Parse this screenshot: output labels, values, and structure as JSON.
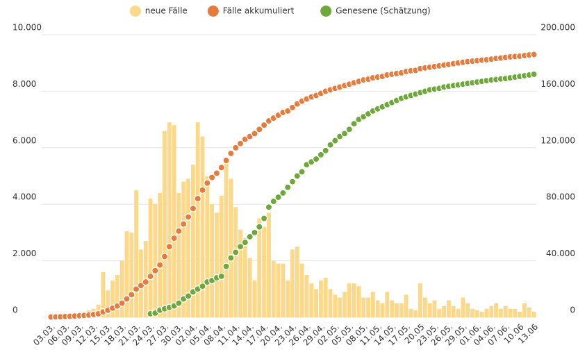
{
  "chart_data": {
    "type": "bar",
    "categories": [
      "03.03.",
      null,
      null,
      "06.03.",
      null,
      null,
      "09.03.",
      null,
      null,
      "12.03.",
      null,
      null,
      "15.03.",
      null,
      null,
      "18.03.",
      null,
      null,
      "21.03.",
      null,
      null,
      "24.03.",
      null,
      null,
      "27.03.",
      null,
      null,
      "30.03.",
      null,
      null,
      "02.04.",
      null,
      null,
      "05.04.",
      null,
      null,
      "08.04.",
      null,
      null,
      "11.04.",
      null,
      null,
      "14.04.",
      null,
      null,
      "17.04.",
      null,
      null,
      "20.04.",
      null,
      null,
      "23.04.",
      null,
      null,
      "26.04.",
      null,
      null,
      "29.04.",
      null,
      null,
      "02.05.",
      null,
      null,
      "05.05.",
      null,
      null,
      "08.05.",
      null,
      null,
      "11.05.",
      null,
      null,
      "14.05.",
      null,
      null,
      "17.05.",
      null,
      null,
      "20.05",
      null,
      null,
      "23.05.",
      null,
      null,
      "26.05.",
      null,
      null,
      "29.05.",
      null,
      null,
      "01.06.",
      null,
      null,
      "04.06.",
      null,
      null,
      "07.06.",
      null,
      null,
      "10.06",
      null,
      null,
      "13.06"
    ],
    "series": [
      {
        "name": "neue Fälle",
        "type": "bar",
        "color": "#fcd98a",
        "values": [
          20,
          30,
          50,
          100,
          120,
          150,
          150,
          200,
          250,
          300,
          450,
          1600,
          950,
          1300,
          1500,
          2000,
          3050,
          3000,
          4500,
          2400,
          2700,
          4200,
          4000,
          4400,
          6600,
          6900,
          6800,
          4400,
          4800,
          4900,
          5400,
          6900,
          6400,
          5000,
          4000,
          3700,
          4300,
          5600,
          4900,
          3900,
          3100,
          2800,
          2100,
          1300,
          3500,
          3200,
          3700,
          2000,
          1900,
          1900,
          1300,
          2400,
          2500,
          1900,
          1500,
          1200,
          1000,
          1300,
          1400,
          1000,
          800,
          700,
          900,
          1200,
          1200,
          1100,
          700,
          700,
          900,
          600,
          500,
          900,
          600,
          500,
          500,
          800,
          300,
          250,
          1200,
          700,
          500,
          600,
          300,
          400,
          600,
          400,
          300,
          700,
          500,
          300,
          250,
          200,
          300,
          400,
          500,
          300,
          400,
          300,
          300,
          200,
          500,
          350,
          200
        ]
      },
      {
        "name": "Fälle akkumuliert",
        "type": "dot",
        "axis": "y2",
        "color": "#e57b3c",
        "values": [
          200,
          300,
          400,
          500,
          700,
          900,
          1100,
          1300,
          1600,
          2000,
          2500,
          3800,
          5000,
          6500,
          8000,
          10000,
          13000,
          16000,
          20000,
          22500,
          25000,
          29000,
          33000,
          37000,
          43000,
          50000,
          56000,
          61000,
          66000,
          71000,
          77000,
          84000,
          90000,
          95000,
          99000,
          102000,
          106000,
          111000,
          116000,
          120000,
          123000,
          126000,
          128000,
          130000,
          133000,
          136000,
          139000,
          141000,
          143000,
          145000,
          146000,
          148500,
          151000,
          153000,
          154500,
          156000,
          157000,
          158500,
          160000,
          161000,
          162000,
          163000,
          164000,
          165000,
          166000,
          167000,
          168000,
          168500,
          169500,
          170000,
          170500,
          171500,
          172000,
          172500,
          173000,
          174000,
          174500,
          174800,
          176000,
          176500,
          177000,
          177500,
          178000,
          178500,
          179000,
          179500,
          180000,
          180500,
          181000,
          181300,
          181600,
          182000,
          182300,
          182700,
          183200,
          183500,
          184000,
          184300,
          184600,
          184800,
          185300,
          185700,
          186000
        ]
      },
      {
        "name": "Genesene (Schätzung)",
        "type": "dot",
        "axis": "y2",
        "color": "#6ea83b",
        "values": [
          null,
          null,
          null,
          null,
          null,
          null,
          null,
          null,
          null,
          null,
          null,
          null,
          null,
          null,
          null,
          null,
          null,
          null,
          null,
          null,
          null,
          2500,
          3000,
          5000,
          6000,
          7000,
          8000,
          10000,
          13000,
          15000,
          18000,
          20000,
          22000,
          25000,
          26000,
          28000,
          29000,
          36000,
          42000,
          46000,
          50000,
          53000,
          57000,
          60000,
          64000,
          70000,
          78000,
          82000,
          85000,
          88000,
          92000,
          96000,
          100000,
          103000,
          108000,
          110000,
          112000,
          115000,
          118000,
          122000,
          125000,
          128000,
          130000,
          133000,
          137000,
          140000,
          142000,
          144000,
          146000,
          147500,
          149000,
          150500,
          152000,
          153500,
          155000,
          156000,
          157000,
          158000,
          159000,
          160000,
          161000,
          161500,
          162000,
          163000,
          163500,
          164000,
          164500,
          165000,
          165500,
          166000,
          166500,
          167000,
          167500,
          168000,
          168300,
          168700,
          169000,
          169500,
          170000,
          170500,
          171000,
          171500,
          172000
        ]
      }
    ],
    "ylim": [
      0,
      10000
    ],
    "yticks": [
      0,
      {
        "value": 2000,
        "label": "2.000"
      },
      {
        "value": 4000,
        "label": "4.000"
      },
      {
        "value": 6000,
        "label": "6.000"
      },
      {
        "value": 8000,
        "label": "8.000"
      },
      {
        "value": 10000,
        "label": "10.000"
      }
    ],
    "y2lim": [
      0,
      200000
    ],
    "y2ticks": [
      0,
      {
        "value": 40000,
        "label": "40.000"
      },
      {
        "value": 80000,
        "label": "80.000"
      },
      {
        "value": 120000,
        "label": "120.000"
      },
      {
        "value": 160000,
        "label": "160.000"
      },
      {
        "value": 200000,
        "label": "200.000"
      }
    ],
    "grid": true,
    "legend": "top"
  }
}
